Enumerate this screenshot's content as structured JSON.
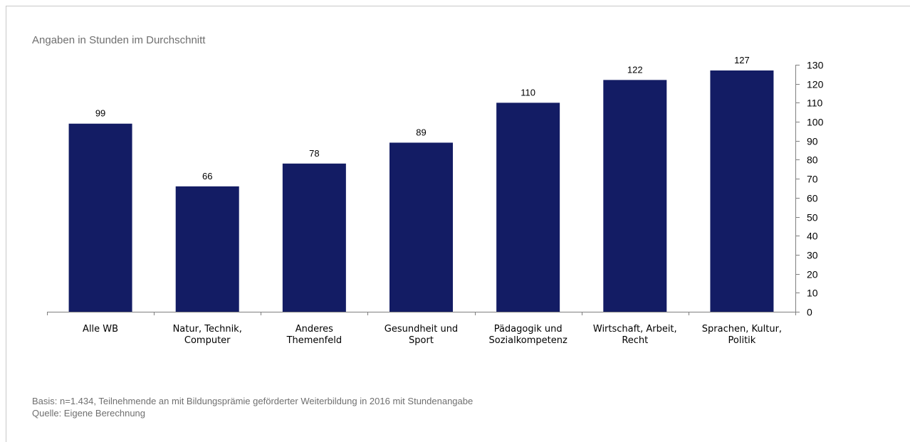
{
  "subtitle": "Angaben in Stunden im Durchschnitt",
  "footer": {
    "basis": "Basis: n=1.434, Teilnehmende an mit Bildungsprämie geförderter Weiterbildung in 2016 mit Stundenangabe",
    "source": "Quelle: Eigene Berechnung"
  },
  "colors": {
    "bar": "#131c64",
    "axis": "#7f7f7f"
  },
  "chart_data": {
    "type": "bar",
    "title": "",
    "xlabel": "",
    "ylabel": "",
    "categories": [
      [
        "Alle WB"
      ],
      [
        "Natur, Technik,",
        "Computer"
      ],
      [
        "Anderes",
        "Themenfeld"
      ],
      [
        "Gesundheit und",
        "Sport"
      ],
      [
        "Pädagogik und",
        "Sozialkompetenz"
      ],
      [
        "Wirtschaft, Arbeit,",
        "Recht"
      ],
      [
        "Sprachen, Kultur,",
        "Politik"
      ]
    ],
    "values": [
      99,
      66,
      78,
      89,
      110,
      122,
      127
    ],
    "ylim": [
      0,
      130
    ],
    "yticks": [
      0,
      10,
      20,
      30,
      40,
      50,
      60,
      70,
      80,
      90,
      100,
      110,
      120,
      130
    ],
    "y_axis_side": "right",
    "grid": false,
    "data_labels": true
  }
}
